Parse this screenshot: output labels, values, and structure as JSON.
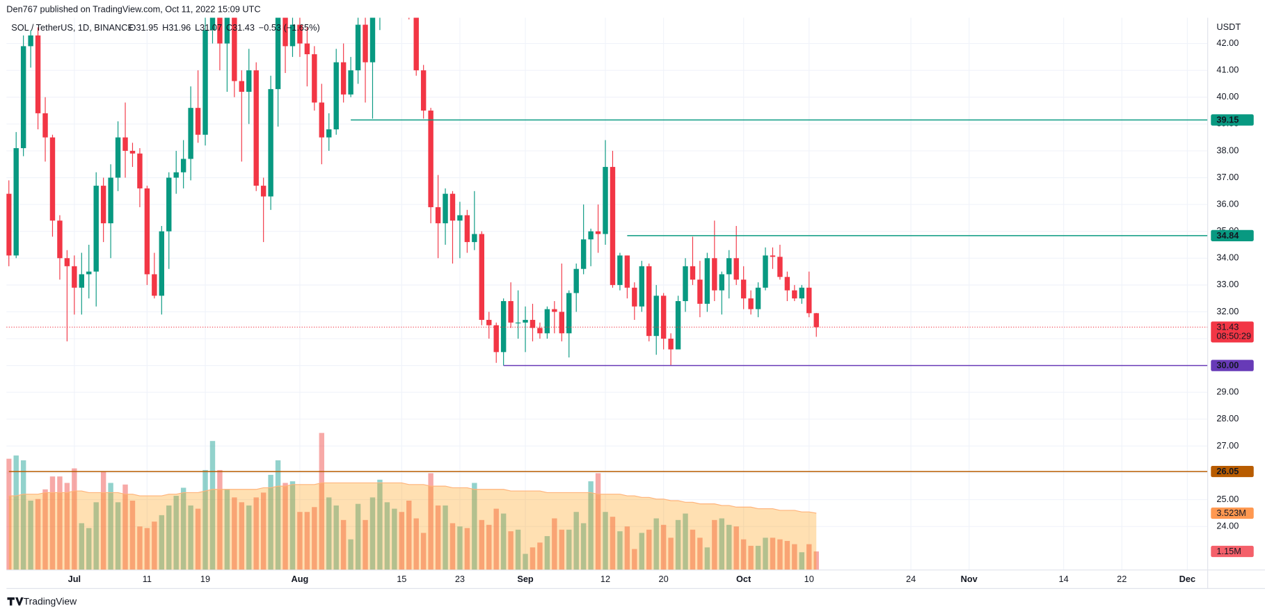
{
  "header": {
    "published": "Den767 published on TradingView.com, Oct 11, 2022 15:09 UTC"
  },
  "footer": {
    "brand": "TradingView"
  },
  "chart_data": {
    "type": "candlestick",
    "title": "SOL / TetherUS, 1D, BINANCE",
    "ohlc_legend": [
      "O31.95",
      "H31.96",
      "L31.07",
      "C31.43",
      "−0.53 (−1.65%)"
    ],
    "y_unit": "USDT",
    "colors": {
      "up": "#089981",
      "down": "#f23645",
      "volume_up": "rgba(38,166,154,0.5)",
      "volume_down": "rgba(239,83,80,0.5)",
      "volume_ma": "rgba(255,152,0,0.3)",
      "volume_ma_line": "#ffb37a"
    },
    "grid": true,
    "open": [
      36.4,
      34.1,
      38.1,
      41.9,
      42.3,
      39.4,
      38.5,
      35.4,
      34.0,
      33.7,
      32.9,
      33.4,
      33.5,
      36.7,
      35.3,
      37.0,
      38.5,
      38.0,
      37.9,
      36.6,
      33.4,
      32.6,
      35.0,
      37.0,
      37.2,
      37.7,
      39.6,
      38.6,
      42.5,
      43.3,
      42.0,
      43.0,
      40.6,
      40.2,
      41.0,
      36.7,
      36.3,
      40.3,
      43.3,
      41.9,
      42.7,
      42.0,
      41.6,
      39.8,
      38.5,
      38.8,
      41.3,
      40.1,
      41.0,
      42.7,
      41.3,
      43.3,
      43.6,
      43.9,
      44.8,
      44.5,
      43.4,
      41.0,
      39.5,
      35.9,
      35.3,
      36.4,
      35.4,
      35.6,
      34.6,
      34.9,
      31.7,
      31.5,
      30.5,
      32.4,
      31.6,
      31.6,
      31.7,
      31.4,
      31.2,
      32.1,
      32.0,
      31.2,
      32.7,
      33.6,
      34.7,
      35.0,
      34.9,
      37.4,
      33.0,
      34.1,
      32.9,
      32.2,
      33.7,
      31.1,
      32.6,
      31.0,
      30.6,
      32.4,
      33.7,
      33.2,
      32.3,
      34.0,
      32.8,
      33.4,
      34.0,
      33.2,
      32.5,
      32.1,
      32.9,
      34.1,
      34.05,
      33.3,
      32.8,
      32.5,
      32.9,
      31.95
    ],
    "high": [
      36.9,
      38.7,
      42.3,
      42.5,
      42.6,
      40.0,
      38.6,
      35.6,
      34.3,
      34.1,
      34.2,
      34.5,
      37.2,
      37.0,
      37.5,
      39.1,
      39.8,
      38.3,
      38.1,
      36.7,
      34.2,
      35.2,
      37.2,
      38.0,
      38.4,
      40.4,
      41.0,
      43.0,
      43.8,
      43.6,
      43.5,
      43.3,
      41.0,
      41.8,
      41.3,
      37.0,
      40.8,
      43.8,
      43.6,
      43.0,
      43.2,
      42.6,
      41.9,
      40.5,
      39.4,
      41.8,
      42.0,
      41.5,
      43.6,
      43.0,
      43.8,
      44.0,
      44.5,
      46.0,
      46.0,
      45.0,
      43.6,
      41.2,
      39.6,
      37.1,
      36.6,
      36.5,
      36.1,
      35.8,
      36.5,
      35.0,
      32.0,
      31.6,
      32.5,
      33.1,
      32.8,
      32.2,
      32.3,
      31.6,
      32.2,
      32.4,
      33.8,
      32.8,
      33.8,
      36.0,
      35.1,
      36.0,
      38.4,
      38.0,
      34.2,
      34.1,
      33.1,
      33.9,
      33.8,
      33.0,
      32.7,
      31.2,
      32.6,
      34.0,
      34.8,
      33.9,
      34.2,
      35.4,
      33.5,
      34.3,
      35.2,
      33.7,
      32.8,
      33.1,
      34.4,
      34.4,
      34.5,
      33.5,
      33.0,
      33.0,
      33.5,
      31.96
    ],
    "low": [
      33.7,
      34.0,
      37.8,
      41.1,
      38.8,
      37.6,
      34.8,
      33.2,
      30.9,
      31.9,
      31.9,
      32.5,
      32.2,
      34.6,
      34.0,
      36.5,
      37.0,
      37.4,
      35.9,
      33.0,
      32.5,
      31.9,
      33.6,
      36.4,
      36.6,
      36.9,
      38.3,
      38.2,
      42.0,
      41.0,
      40.2,
      40.0,
      37.6,
      39.0,
      36.5,
      34.6,
      35.8,
      38.9,
      40.9,
      41.5,
      41.5,
      40.4,
      39.5,
      37.5,
      38.0,
      38.6,
      39.8,
      40.0,
      40.5,
      39.8,
      39.2,
      42.5,
      43.2,
      43.5,
      43.5,
      42.9,
      40.8,
      39.2,
      35.3,
      34.0,
      34.5,
      33.8,
      34.0,
      34.2,
      34.3,
      31.5,
      31.0,
      30.1,
      30.0,
      31.4,
      31.0,
      30.5,
      30.9,
      31.0,
      31.0,
      31.2,
      30.9,
      30.3,
      32.0,
      33.4,
      33.7,
      34.2,
      34.5,
      32.9,
      32.8,
      32.5,
      31.7,
      32.0,
      30.9,
      30.4,
      30.6,
      30.0,
      30.6,
      32.0,
      33.0,
      31.8,
      32.0,
      32.4,
      31.9,
      32.5,
      33.0,
      32.1,
      31.9,
      31.8,
      32.8,
      33.6,
      33.2,
      32.4,
      32.4,
      32.3,
      31.8,
      31.07
    ],
    "close": [
      34.1,
      38.1,
      41.9,
      42.3,
      39.4,
      38.5,
      35.4,
      34.0,
      33.7,
      32.9,
      33.4,
      33.5,
      36.7,
      35.3,
      37.0,
      38.5,
      38.0,
      37.9,
      36.6,
      33.4,
      32.6,
      35.0,
      37.0,
      37.2,
      37.7,
      39.6,
      38.6,
      42.5,
      43.3,
      42.0,
      43.0,
      40.6,
      40.2,
      41.0,
      36.7,
      36.3,
      40.3,
      43.3,
      41.9,
      42.7,
      42.0,
      41.6,
      39.8,
      38.5,
      38.8,
      41.3,
      40.1,
      41.0,
      42.7,
      41.3,
      43.3,
      43.6,
      43.9,
      44.8,
      44.5,
      43.4,
      41.0,
      39.5,
      35.9,
      35.3,
      36.4,
      35.4,
      35.6,
      34.6,
      34.9,
      31.7,
      31.5,
      30.5,
      32.4,
      31.6,
      31.6,
      31.7,
      31.4,
      31.2,
      32.1,
      32.0,
      31.2,
      32.7,
      33.6,
      34.7,
      35.0,
      34.9,
      37.4,
      33.0,
      34.1,
      32.9,
      32.2,
      33.7,
      31.1,
      32.6,
      31.0,
      30.6,
      32.4,
      33.7,
      33.2,
      32.3,
      34.0,
      32.8,
      33.4,
      34.0,
      33.2,
      32.5,
      32.1,
      32.9,
      34.1,
      34.05,
      33.3,
      32.8,
      32.5,
      32.9,
      31.95,
      31.43
    ],
    "volume": [
      6.9,
      7.1,
      6.8,
      4.3,
      4.4,
      5.0,
      5.8,
      5.8,
      5.4,
      6.3,
      2.9,
      2.6,
      4.2,
      6.1,
      5.4,
      4.2,
      5.3,
      4.3,
      2.7,
      2.6,
      3.0,
      3.4,
      4.0,
      4.6,
      5.1,
      4.0,
      3.8,
      6.2,
      8.0,
      6.2,
      5.0,
      4.5,
      4.2,
      4.0,
      4.5,
      4.8,
      5.9,
      6.8,
      5.4,
      5.5,
      3.6,
      3.6,
      3.9,
      8.5,
      4.5,
      4.0,
      3.1,
      1.9,
      4.1,
      3.1,
      4.5,
      5.6,
      4.2,
      3.8,
      3.6,
      4.3,
      3.2,
      2.3,
      6.0,
      4.0,
      4.0,
      2.9,
      2.7,
      2.6,
      5.4,
      3.1,
      2.8,
      3.8,
      3.5,
      2.4,
      2.5,
      1.0,
      1.4,
      1.7,
      2.1,
      3.2,
      2.5,
      2.5,
      3.6,
      2.9,
      5.5,
      6.0,
      3.6,
      3.3,
      2.4,
      2.7,
      1.3,
      2.3,
      2.5,
      3.2,
      2.8,
      2.0,
      3.1,
      3.5,
      2.5,
      2.0,
      1.4,
      3.1,
      3.2,
      2.8,
      2.7,
      1.9,
      1.5,
      1.5,
      2.0,
      2.0,
      1.9,
      1.8,
      1.6,
      1.1,
      1.6,
      1.15
    ],
    "volume_ma": [
      4.6,
      4.6,
      4.7,
      4.7,
      4.7,
      4.8,
      4.8,
      4.8,
      4.8,
      4.9,
      4.9,
      4.8,
      4.8,
      4.8,
      4.8,
      4.8,
      4.7,
      4.7,
      4.6,
      4.6,
      4.6,
      4.6,
      4.7,
      4.7,
      4.8,
      4.8,
      4.8,
      4.9,
      5.0,
      5.0,
      5.0,
      5.0,
      5.0,
      5.0,
      5.0,
      5.1,
      5.1,
      5.2,
      5.2,
      5.3,
      5.3,
      5.3,
      5.3,
      5.4,
      5.4,
      5.4,
      5.4,
      5.4,
      5.4,
      5.4,
      5.4,
      5.4,
      5.4,
      5.4,
      5.4,
      5.3,
      5.3,
      5.3,
      5.2,
      5.2,
      5.2,
      5.1,
      5.1,
      5.1,
      5.0,
      5.0,
      5.0,
      5.0,
      5.0,
      4.9,
      4.9,
      4.9,
      4.9,
      4.9,
      4.8,
      4.8,
      4.8,
      4.8,
      4.8,
      4.8,
      4.8,
      4.7,
      4.7,
      4.7,
      4.7,
      4.6,
      4.6,
      4.5,
      4.5,
      4.4,
      4.4,
      4.3,
      4.3,
      4.2,
      4.2,
      4.1,
      4.1,
      4.1,
      4.0,
      4.0,
      3.9,
      3.9,
      3.9,
      3.8,
      3.8,
      3.8,
      3.7,
      3.7,
      3.7,
      3.6,
      3.6,
      3.523
    ],
    "volume_ma_label": "3.523M",
    "volume_label": "1.15M",
    "volume_lim": [
      0,
      34.25
    ],
    "xlim": [
      -0.33,
      164.8
    ],
    "xticks": [
      {
        "value": 9,
        "label": "Jul"
      },
      {
        "value": 19,
        "label": "11"
      },
      {
        "value": 27,
        "label": "19"
      },
      {
        "value": 40,
        "label": "Aug"
      },
      {
        "value": 54,
        "label": "15"
      },
      {
        "value": 62,
        "label": "23"
      },
      {
        "value": 71,
        "label": "Sep"
      },
      {
        "value": 82,
        "label": "12"
      },
      {
        "value": 90,
        "label": "20"
      },
      {
        "value": 101,
        "label": "Oct"
      },
      {
        "value": 110,
        "label": "10"
      },
      {
        "value": 124,
        "label": "24"
      },
      {
        "value": 132,
        "label": "Nov"
      },
      {
        "value": 145,
        "label": "14"
      },
      {
        "value": 153,
        "label": "22"
      },
      {
        "value": 162,
        "label": "Dec"
      }
    ],
    "ylim": [
      22.38,
      42.96
    ],
    "yticks": [
      {
        "value": 24,
        "label": "24.00"
      },
      {
        "value": 25,
        "label": "25.00"
      },
      {
        "value": 26,
        "label": "26.00"
      },
      {
        "value": 27,
        "label": "27.00"
      },
      {
        "value": 28,
        "label": "28.00"
      },
      {
        "value": 29,
        "label": "29.00"
      },
      {
        "value": 30,
        "label": "30.00"
      },
      {
        "value": 31,
        "label": "31.00"
      },
      {
        "value": 32,
        "label": "32.00"
      },
      {
        "value": 33,
        "label": "33.00"
      },
      {
        "value": 34,
        "label": "34.00"
      },
      {
        "value": 35,
        "label": "35.00"
      },
      {
        "value": 36,
        "label": "36.00"
      },
      {
        "value": 37,
        "label": "37.00"
      },
      {
        "value": 38,
        "label": "38.00"
      },
      {
        "value": 39,
        "label": "39.00"
      },
      {
        "value": 40,
        "label": "40.00"
      },
      {
        "value": 41,
        "label": "41.00"
      },
      {
        "value": 42,
        "label": "42.00"
      }
    ],
    "levels": [
      {
        "value": 39.15,
        "color": "#089981",
        "from": 47
      },
      {
        "value": 34.84,
        "color": "#089981",
        "from": 85
      },
      {
        "value": 30,
        "label": "30.00",
        "color": "#673ab7",
        "from": 68
      },
      {
        "value": 26.05,
        "color": "#b85c00",
        "from": 0
      }
    ],
    "last_price": {
      "value": 31.43,
      "countdown": "08:50:29",
      "color": "#f23645"
    }
  }
}
